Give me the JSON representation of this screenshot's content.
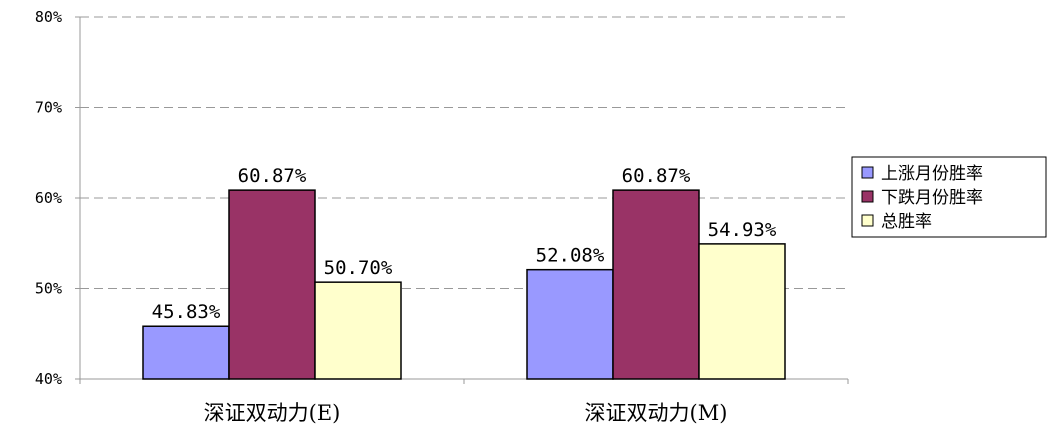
{
  "chart_data": {
    "type": "bar",
    "categories": [
      "深证双动力(E)",
      "深证双动力(M)"
    ],
    "series": [
      {
        "name": "上涨月份胜率",
        "values": [
          45.83,
          52.08
        ],
        "labels": [
          "45.83%",
          "52.08%"
        ],
        "color": "#9999FF"
      },
      {
        "name": "下跌月份胜率",
        "values": [
          60.87,
          60.87
        ],
        "labels": [
          "60.87%",
          "60.87%"
        ],
        "color": "#993366"
      },
      {
        "name": "总胜率",
        "values": [
          50.7,
          54.93
        ],
        "labels": [
          "50.70%",
          "54.93%"
        ],
        "color": "#FFFFCC"
      }
    ],
    "ylim": [
      40,
      80
    ],
    "yticks": [
      40,
      50,
      60,
      70,
      80
    ],
    "ytick_labels": [
      "40%",
      "50%",
      "60%",
      "70%",
      "80%"
    ],
    "title": "",
    "xlabel": "",
    "ylabel": "",
    "grid": "horizontal dashed",
    "legend": "right"
  }
}
